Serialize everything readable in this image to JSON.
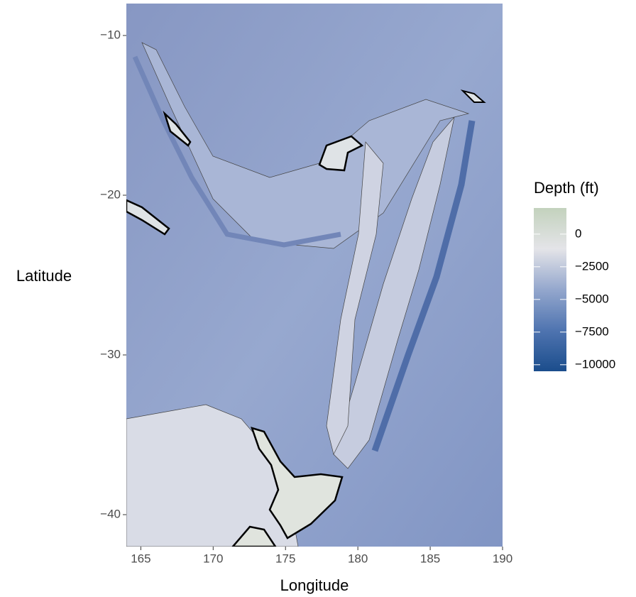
{
  "chart_data": {
    "type": "raster",
    "x_label": "Longitude",
    "y_label": "Latitude",
    "xlim": [
      164,
      190
    ],
    "ylim": [
      -42,
      -8
    ],
    "xticks": [
      165,
      170,
      175,
      180,
      185,
      190
    ],
    "yticks": [
      {
        "value": -10,
        "label": "−10"
      },
      {
        "value": -20,
        "label": "−20"
      },
      {
        "value": -30,
        "label": "−30"
      },
      {
        "value": -40,
        "label": "−40"
      }
    ],
    "grid": false,
    "legend": {
      "title": "Depth (ft)",
      "position": "right",
      "lim": [
        -10500,
        2000
      ],
      "ticks": [
        0,
        {
          "value": -2500,
          "label": "−2500"
        },
        {
          "value": -5000,
          "label": "−5000"
        },
        {
          "value": -7500,
          "label": "−7500"
        },
        {
          "value": -10000,
          "label": "−10000"
        }
      ],
      "colors": [
        "#1b4d8c",
        "#4f74b0",
        "#94a7cd",
        "#e4e4e8",
        "#c3d2bd"
      ]
    }
  }
}
